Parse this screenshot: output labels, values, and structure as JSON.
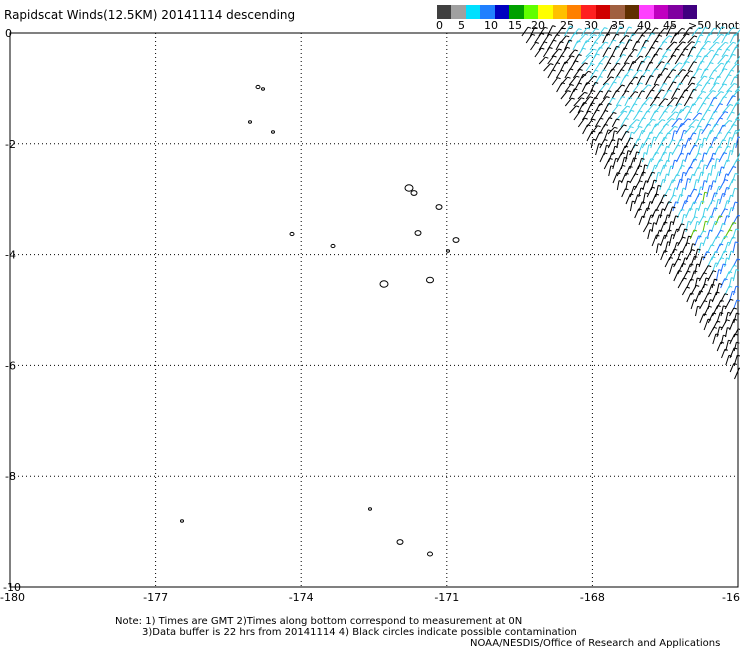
{
  "title": "Rapidscat Winds(12.5KM) 20141114 descending",
  "colorbar": {
    "labels": [
      "0",
      "5",
      "10",
      "15",
      "20",
      "25",
      "30",
      "35",
      "40",
      "45",
      ">50 knots"
    ],
    "colors": [
      "#404040",
      "#a0a0a0",
      "#00e0ff",
      "#2080ff",
      "#0000c0",
      "#00a000",
      "#60ff00",
      "#ffff00",
      "#ffc000",
      "#ff8000",
      "#ff2020",
      "#d00000",
      "#a06040",
      "#603000",
      "#ff40ff",
      "#c000c0",
      "#8000a0",
      "#400080"
    ]
  },
  "chart_data": {
    "type": "map",
    "xlim": [
      -180,
      -165
    ],
    "ylim": [
      -10,
      0
    ],
    "x_ticks": [
      "-180",
      "-177",
      "-174",
      "-171",
      "-168",
      "-16"
    ],
    "y_ticks": [
      "0",
      "-2",
      "-4",
      "-6",
      "-8",
      "-10"
    ],
    "grid": "dotted",
    "wind_swath": {
      "region": "northeast corner",
      "dominant_speeds_knots": "5-20"
    },
    "wind_barb_colors": {
      "calm": "#000000",
      "light": "#40d0e8",
      "moderate": "#2070ff",
      "strong": "#60c000"
    }
  },
  "notes": {
    "line1": "Note: 1) Times are GMT 2)Times along bottom correspond to measurement at 0N",
    "line2": "3)Data buffer is 22 hrs from 20141114 4) Black circles indicate possible contamination",
    "credit": "NOAA/NESDIS/Office of Research and Applications"
  }
}
